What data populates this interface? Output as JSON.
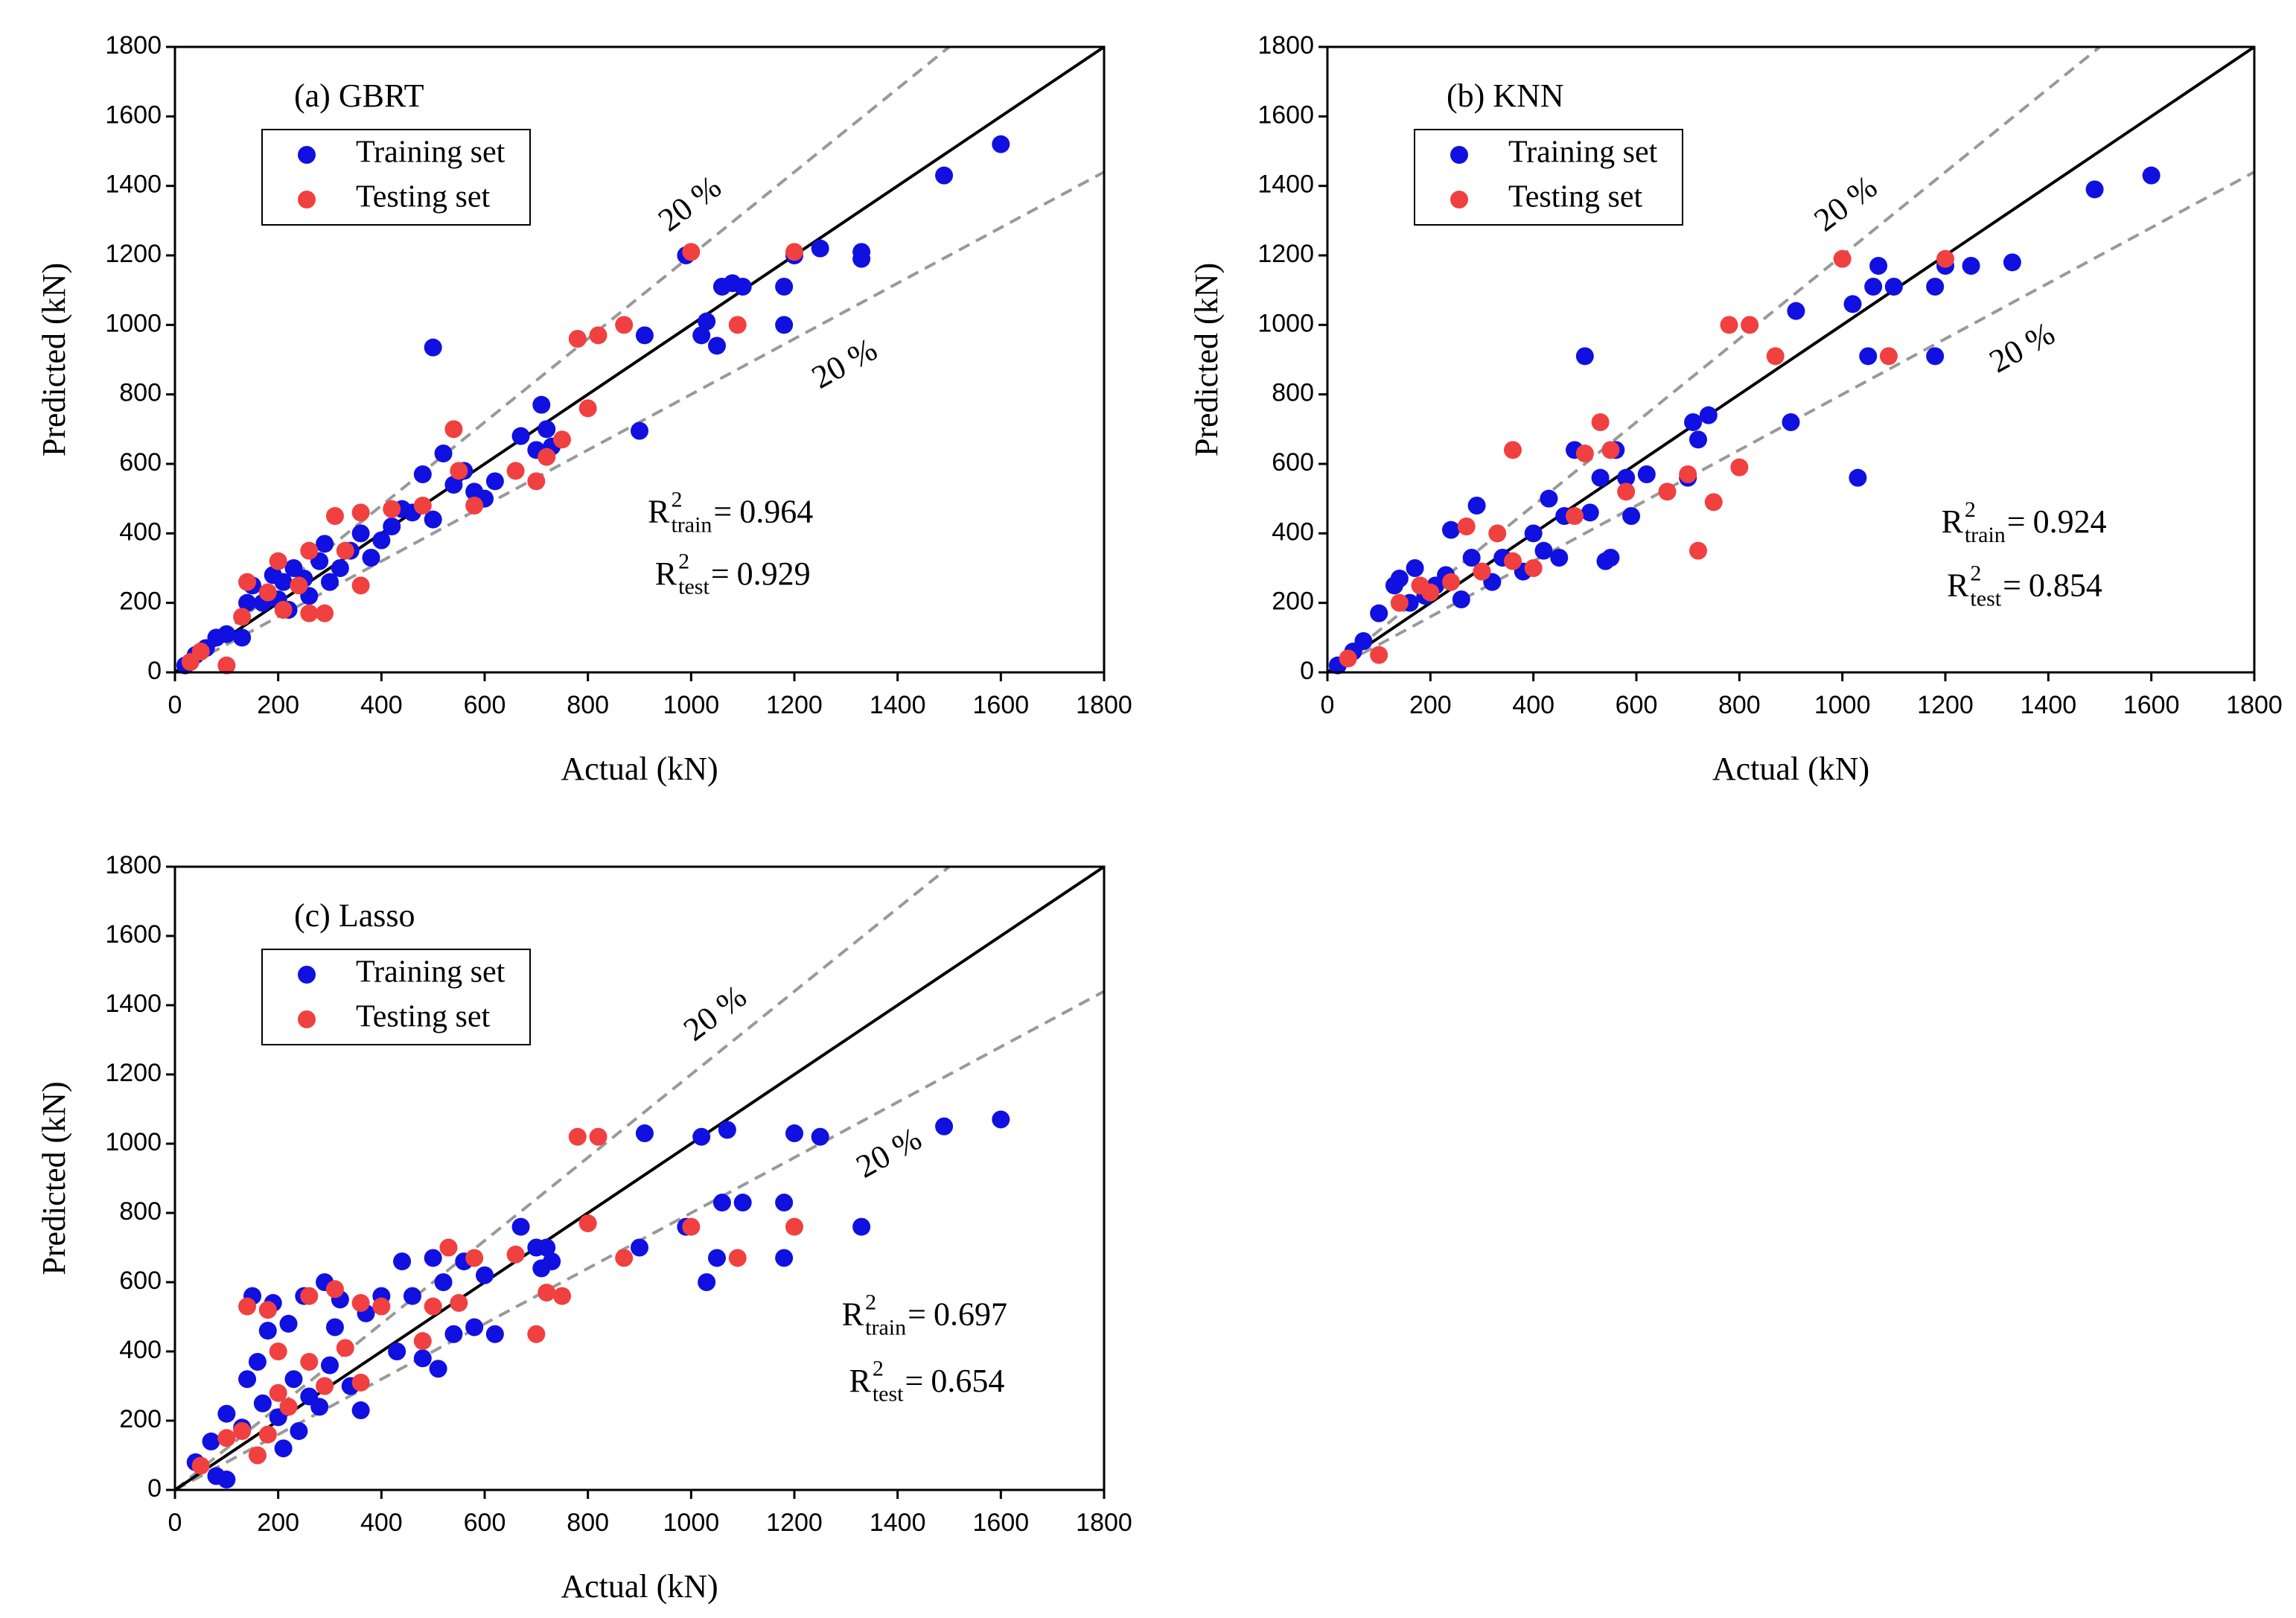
{
  "chart_data": [
    {
      "type": "scatter",
      "title": "(a) GBRT",
      "xlabel": "Actual (kN)",
      "ylabel": "Predicted (kN)",
      "xlim": [
        0,
        1800
      ],
      "ylim": [
        0,
        1800
      ],
      "xticks": [
        0,
        200,
        400,
        600,
        800,
        1000,
        1200,
        1400,
        1600,
        1800
      ],
      "yticks": [
        0,
        200,
        400,
        600,
        800,
        1000,
        1200,
        1400,
        1600,
        1800
      ],
      "legend": "upper left",
      "error_band": 20,
      "annotations": [
        "20 %",
        "20 %"
      ],
      "stats": [
        {
          "symbol": "R",
          "power": "2",
          "subscript": "train",
          "relation": "=",
          "value": 0.964
        },
        {
          "symbol": "R",
          "power": "2",
          "subscript": "test",
          "relation": "=",
          "value": 0.929
        }
      ],
      "series": [
        {
          "name": "Training set",
          "color": "#1010e0",
          "x": [
            20,
            40,
            60,
            80,
            100,
            130,
            140,
            150,
            170,
            180,
            190,
            200,
            210,
            220,
            230,
            250,
            260,
            280,
            290,
            300,
            320,
            340,
            360,
            380,
            400,
            420,
            440,
            460,
            480,
            500,
            500,
            520,
            540,
            560,
            580,
            600,
            620,
            670,
            700,
            710,
            720,
            730,
            900,
            910,
            990,
            1020,
            1030,
            1050,
            1060,
            1080,
            1100,
            1180,
            1180,
            1200,
            1250,
            1330,
            1330,
            1490,
            1600
          ],
          "values": [
            20,
            50,
            70,
            100,
            110,
            100,
            200,
            250,
            200,
            230,
            280,
            210,
            260,
            180,
            300,
            270,
            220,
            320,
            370,
            260,
            300,
            350,
            400,
            330,
            380,
            420,
            470,
            460,
            570,
            935,
            440,
            630,
            540,
            580,
            520,
            500,
            550,
            680,
            640,
            770,
            700,
            650,
            695,
            970,
            1200,
            970,
            1010,
            940,
            1110,
            1120,
            1110,
            1000,
            1110,
            1200,
            1220,
            1190,
            1210,
            1430,
            1520
          ]
        },
        {
          "name": "Testing set",
          "color": "#f04040",
          "x": [
            30,
            50,
            100,
            130,
            140,
            180,
            200,
            210,
            240,
            260,
            260,
            290,
            310,
            330,
            360,
            360,
            420,
            480,
            540,
            550,
            580,
            660,
            700,
            720,
            750,
            780,
            800,
            820,
            870,
            1000,
            1090,
            1200
          ],
          "values": [
            30,
            60,
            20,
            160,
            260,
            230,
            320,
            180,
            250,
            170,
            350,
            170,
            450,
            350,
            250,
            460,
            470,
            480,
            700,
            580,
            480,
            580,
            550,
            620,
            670,
            960,
            760,
            970,
            1000,
            1210,
            1000,
            1210
          ]
        }
      ]
    },
    {
      "type": "scatter",
      "title": "(b) KNN",
      "xlabel": "Actual (kN)",
      "ylabel": "Predicted (kN)",
      "xlim": [
        0,
        1800
      ],
      "ylim": [
        0,
        1800
      ],
      "xticks": [
        0,
        200,
        400,
        600,
        800,
        1000,
        1200,
        1400,
        1600,
        1800
      ],
      "yticks": [
        0,
        200,
        400,
        600,
        800,
        1000,
        1200,
        1400,
        1600,
        1800
      ],
      "legend": "upper left",
      "error_band": 20,
      "annotations": [
        "20 %",
        "20 %"
      ],
      "stats": [
        {
          "symbol": "R",
          "power": "2",
          "subscript": "train",
          "relation": "=",
          "value": 0.924
        },
        {
          "symbol": "R",
          "power": "2",
          "subscript": "test",
          "relation": "=",
          "value": 0.854
        }
      ],
      "series": [
        {
          "name": "Training set",
          "color": "#1010e0",
          "x": [
            20,
            50,
            70,
            100,
            130,
            140,
            160,
            170,
            190,
            210,
            230,
            240,
            260,
            280,
            290,
            300,
            320,
            340,
            380,
            400,
            420,
            430,
            450,
            460,
            480,
            500,
            510,
            530,
            540,
            550,
            560,
            580,
            590,
            620,
            700,
            710,
            720,
            740,
            900,
            910,
            1020,
            1030,
            1050,
            1060,
            1070,
            1100,
            1180,
            1180,
            1200,
            1250,
            1330,
            1490,
            1600
          ],
          "values": [
            20,
            60,
            90,
            170,
            250,
            270,
            200,
            300,
            220,
            250,
            280,
            410,
            210,
            330,
            480,
            290,
            260,
            330,
            290,
            400,
            350,
            500,
            330,
            450,
            640,
            910,
            460,
            560,
            320,
            330,
            640,
            560,
            450,
            570,
            560,
            720,
            670,
            740,
            720,
            1040,
            1060,
            560,
            910,
            1110,
            1170,
            1110,
            910,
            1110,
            1170,
            1170,
            1180,
            1390,
            1430
          ]
        },
        {
          "name": "Testing set",
          "color": "#f04040",
          "x": [
            40,
            100,
            140,
            180,
            200,
            240,
            270,
            300,
            330,
            360,
            360,
            400,
            480,
            500,
            530,
            550,
            580,
            660,
            700,
            720,
            750,
            780,
            800,
            820,
            870,
            1000,
            1090,
            1200
          ],
          "values": [
            40,
            50,
            200,
            250,
            230,
            260,
            420,
            290,
            400,
            640,
            320,
            300,
            450,
            630,
            720,
            640,
            520,
            520,
            570,
            350,
            490,
            1000,
            590,
            1000,
            910,
            1190,
            910,
            1190
          ]
        }
      ]
    },
    {
      "type": "scatter",
      "title": "(c) Lasso",
      "xlabel": "Actual (kN)",
      "ylabel": "Predicted (kN)",
      "xlim": [
        0,
        1800
      ],
      "ylim": [
        0,
        1800
      ],
      "xticks": [
        0,
        200,
        400,
        600,
        800,
        1000,
        1200,
        1400,
        1600,
        1800
      ],
      "yticks": [
        0,
        200,
        400,
        600,
        800,
        1000,
        1200,
        1400,
        1600,
        1800
      ],
      "legend": "upper left",
      "error_band": 20,
      "annotations": [
        "20 %",
        "20 %"
      ],
      "stats": [
        {
          "symbol": "R",
          "power": "2",
          "subscript": "train",
          "relation": "=",
          "value": 0.697
        },
        {
          "symbol": "R",
          "power": "2",
          "subscript": "test",
          "relation": "=",
          "value": 0.654
        }
      ],
      "series": [
        {
          "name": "Training set",
          "color": "#1010e0",
          "x": [
            40,
            70,
            80,
            100,
            100,
            130,
            140,
            150,
            160,
            170,
            180,
            190,
            200,
            210,
            220,
            230,
            240,
            250,
            260,
            280,
            290,
            300,
            310,
            320,
            340,
            360,
            370,
            400,
            430,
            440,
            460,
            480,
            500,
            510,
            520,
            540,
            560,
            580,
            600,
            620,
            670,
            700,
            710,
            720,
            730,
            900,
            910,
            990,
            1020,
            1030,
            1050,
            1060,
            1070,
            1100,
            1180,
            1180,
            1200,
            1250,
            1330,
            1490,
            1600
          ],
          "values": [
            80,
            140,
            40,
            30,
            220,
            180,
            320,
            560,
            370,
            250,
            460,
            540,
            210,
            120,
            480,
            320,
            170,
            560,
            270,
            240,
            600,
            360,
            470,
            550,
            300,
            230,
            510,
            560,
            400,
            660,
            560,
            380,
            670,
            350,
            600,
            450,
            660,
            470,
            620,
            450,
            760,
            700,
            640,
            700,
            660,
            700,
            1030,
            760,
            1020,
            600,
            670,
            830,
            1040,
            830,
            830,
            670,
            1030,
            1020,
            760,
            1050,
            1070
          ]
        },
        {
          "name": "Testing set",
          "color": "#f04040",
          "x": [
            50,
            100,
            130,
            140,
            160,
            180,
            180,
            200,
            200,
            220,
            260,
            260,
            290,
            310,
            330,
            360,
            360,
            400,
            480,
            500,
            530,
            550,
            580,
            660,
            700,
            720,
            750,
            780,
            800,
            820,
            870,
            1000,
            1090,
            1200
          ],
          "values": [
            70,
            150,
            170,
            530,
            100,
            160,
            520,
            280,
            400,
            240,
            370,
            560,
            300,
            580,
            410,
            310,
            540,
            530,
            430,
            530,
            700,
            540,
            670,
            680,
            450,
            570,
            560,
            1020,
            770,
            1020,
            670,
            760,
            670,
            760
          ]
        }
      ]
    }
  ]
}
